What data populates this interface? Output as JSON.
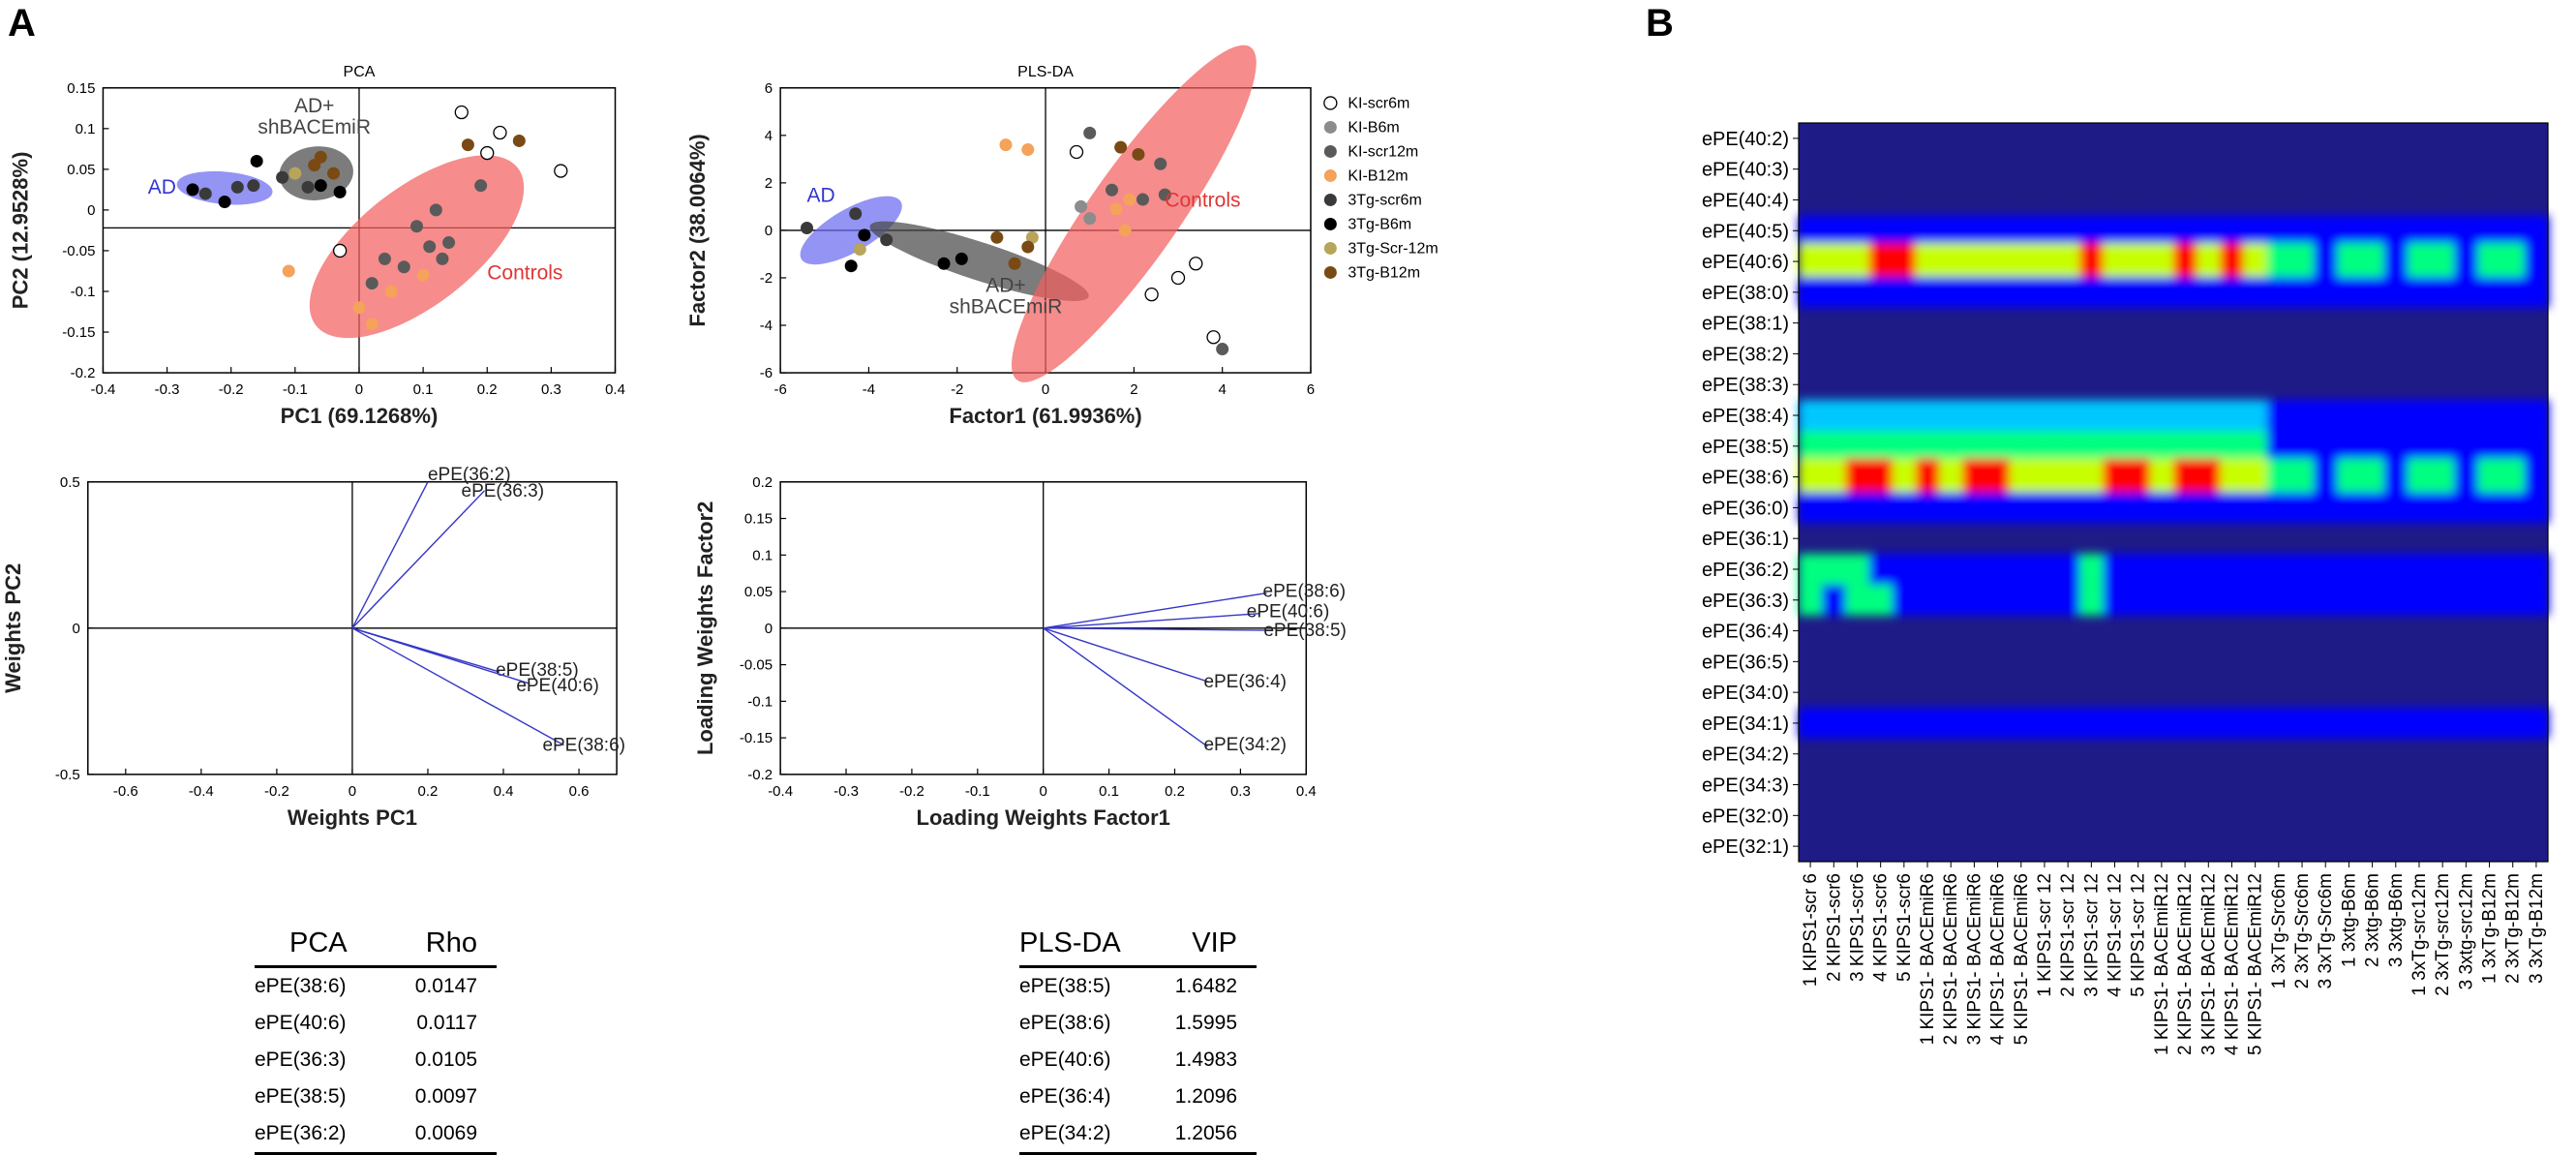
{
  "panel_labels": {
    "a": "A",
    "b": "B"
  },
  "chart_data": [
    {
      "id": "pca-scores",
      "type": "scatter",
      "title": "PCA",
      "xlabel": "PC1 (69.1268%)",
      "ylabel": "PC2 (12.9528%)",
      "xlim": [
        -0.4,
        0.4
      ],
      "ylim": [
        -0.2,
        0.15
      ],
      "xticks": [
        "-0.4",
        "-0.3",
        "-0.2",
        "-0.1",
        "0",
        "0.1",
        "0.2",
        "0.3",
        "0.4"
      ],
      "yticks": [
        "-0.2",
        "-0.15",
        "-0.1",
        "-0.05",
        "0",
        "0.05",
        "0.1",
        "0.15"
      ],
      "crosshair": [
        0,
        -0.022
      ],
      "ellipses": [
        {
          "label": "AD",
          "color": "#6b6bf0",
          "label_color": "#3434d0",
          "cx": -0.21,
          "cy": 0.027,
          "rx": 0.075,
          "ry": 0.02,
          "angle": 5
        },
        {
          "label": "AD+\nshBACEmiR",
          "color": "#4a4a4a",
          "label_color": "#444444",
          "cx": -0.067,
          "cy": 0.045,
          "rx": 0.058,
          "ry": 0.033,
          "angle": -6
        },
        {
          "label": "Controls",
          "color": "#f26060",
          "label_color": "#e03535",
          "cx": 0.09,
          "cy": -0.045,
          "rx": 0.2,
          "ry": 0.072,
          "angle": -38
        }
      ],
      "points": [
        {
          "g": "3Tg-B6m",
          "x": -0.26,
          "y": 0.025
        },
        {
          "g": "3Tg-scr6m",
          "x": -0.24,
          "y": 0.02
        },
        {
          "g": "3Tg-B6m",
          "x": -0.21,
          "y": 0.01
        },
        {
          "g": "3Tg-scr6m",
          "x": -0.19,
          "y": 0.028
        },
        {
          "g": "3Tg-scr6m",
          "x": -0.165,
          "y": 0.03
        },
        {
          "g": "3Tg-B6m",
          "x": -0.16,
          "y": 0.06
        },
        {
          "g": "3Tg-scr6m",
          "x": -0.12,
          "y": 0.04
        },
        {
          "g": "3Tg-Scr-12m",
          "x": -0.1,
          "y": 0.045
        },
        {
          "g": "3Tg-B12m",
          "x": -0.07,
          "y": 0.055
        },
        {
          "g": "3Tg-B6m",
          "x": -0.06,
          "y": 0.03
        },
        {
          "g": "3Tg-B12m",
          "x": -0.04,
          "y": 0.045
        },
        {
          "g": "3Tg-B12m",
          "x": -0.06,
          "y": 0.065
        },
        {
          "g": "3Tg-scr6m",
          "x": -0.08,
          "y": 0.028
        },
        {
          "g": "3Tg-B6m",
          "x": -0.03,
          "y": 0.022
        },
        {
          "g": "KI-B12m",
          "x": -0.11,
          "y": -0.075
        },
        {
          "g": "KI-scr6m",
          "x": -0.03,
          "y": -0.05
        },
        {
          "g": "KI-B12m",
          "x": 0.0,
          "y": -0.12
        },
        {
          "g": "KI-B12m",
          "x": 0.02,
          "y": -0.14
        },
        {
          "g": "KI-scr12m",
          "x": 0.02,
          "y": -0.09
        },
        {
          "g": "KI-B12m",
          "x": 0.05,
          "y": -0.1
        },
        {
          "g": "KI-scr12m",
          "x": 0.04,
          "y": -0.06
        },
        {
          "g": "KI-scr12m",
          "x": 0.07,
          "y": -0.07
        },
        {
          "g": "KI-scr12m",
          "x": 0.09,
          "y": -0.02
        },
        {
          "g": "KI-scr12m",
          "x": 0.11,
          "y": -0.045
        },
        {
          "g": "KI-scr12m",
          "x": 0.13,
          "y": -0.06
        },
        {
          "g": "KI-scr12m",
          "x": 0.14,
          "y": -0.04
        },
        {
          "g": "KI-B12m",
          "x": 0.1,
          "y": -0.08
        },
        {
          "g": "KI-scr12m",
          "x": 0.12,
          "y": 0.0
        },
        {
          "g": "3Tg-B12m",
          "x": 0.17,
          "y": 0.08
        },
        {
          "g": "KI-scr6m",
          "x": 0.16,
          "y": 0.12
        },
        {
          "g": "KI-scr6m",
          "x": 0.2,
          "y": 0.07
        },
        {
          "g": "KI-scr6m",
          "x": 0.22,
          "y": 0.095
        },
        {
          "g": "3Tg-B12m",
          "x": 0.25,
          "y": 0.085
        },
        {
          "g": "KI-scr12m",
          "x": 0.19,
          "y": 0.03
        },
        {
          "g": "KI-scr6m",
          "x": 0.315,
          "y": 0.048
        }
      ]
    },
    {
      "id": "plsda-scores",
      "type": "scatter",
      "title": "PLS-DA",
      "xlabel": "Factor1 (61.9936%)",
      "ylabel": "Factor2 (38.0064%)",
      "xlim": [
        -6,
        6
      ],
      "ylim": [
        -6,
        6
      ],
      "xticks": [
        "-6",
        "-4",
        "-2",
        "0",
        "2",
        "4",
        "6"
      ],
      "yticks": [
        "-6",
        "-4",
        "-2",
        "0",
        "2",
        "4",
        "6"
      ],
      "crosshair": [
        0,
        0
      ],
      "ellipses": [
        {
          "label": "AD",
          "color": "#6b6bf0",
          "label_color": "#3434d0",
          "cx": -4.4,
          "cy": 0.0,
          "rx": 1.3,
          "ry": 0.9,
          "angle": -30
        },
        {
          "label": "AD+\nshBACEmiR",
          "color": "#4a4a4a",
          "label_color": "#444444",
          "cx": -1.5,
          "cy": -1.3,
          "rx": 2.6,
          "ry": 0.8,
          "angle": 18
        },
        {
          "label": "Controls",
          "color": "#f26060",
          "label_color": "#e03535",
          "cx": 2.0,
          "cy": 0.7,
          "rx": 4.6,
          "ry": 1.9,
          "angle": -55
        }
      ],
      "points": [
        {
          "g": "3Tg-scr6m",
          "x": -5.4,
          "y": 0.1
        },
        {
          "g": "3Tg-scr6m",
          "x": -4.3,
          "y": 0.7
        },
        {
          "g": "3Tg-B6m",
          "x": -4.1,
          "y": -0.2
        },
        {
          "g": "3Tg-Scr-12m",
          "x": -4.2,
          "y": -0.8
        },
        {
          "g": "3Tg-B6m",
          "x": -4.4,
          "y": -1.5
        },
        {
          "g": "3Tg-scr6m",
          "x": -3.6,
          "y": -0.4
        },
        {
          "g": "3Tg-B6m",
          "x": -2.3,
          "y": -1.4
        },
        {
          "g": "3Tg-B6m",
          "x": -1.9,
          "y": -1.2
        },
        {
          "g": "3Tg-B12m",
          "x": -1.1,
          "y": -0.3
        },
        {
          "g": "3Tg-B12m",
          "x": -0.7,
          "y": -1.4
        },
        {
          "g": "3Tg-Scr-12m",
          "x": -0.3,
          "y": -0.3
        },
        {
          "g": "3Tg-B12m",
          "x": -0.4,
          "y": -0.7
        },
        {
          "g": "KI-B12m",
          "x": -0.9,
          "y": 3.6
        },
        {
          "g": "KI-B12m",
          "x": -0.4,
          "y": 3.4
        },
        {
          "g": "KI-scr6m",
          "x": 0.7,
          "y": 3.3
        },
        {
          "g": "KI-scr12m",
          "x": 1.0,
          "y": 4.1
        },
        {
          "g": "3Tg-B12m",
          "x": 1.7,
          "y": 3.5
        },
        {
          "g": "KI-scr12m",
          "x": 2.6,
          "y": 2.8
        },
        {
          "g": "3Tg-B12m",
          "x": 2.1,
          "y": 3.2
        },
        {
          "g": "KI-B6m",
          "x": 0.8,
          "y": 1.0
        },
        {
          "g": "KI-B12m",
          "x": 1.6,
          "y": 0.9
        },
        {
          "g": "KI-B12m",
          "x": 1.9,
          "y": 1.3
        },
        {
          "g": "KI-scr12m",
          "x": 1.5,
          "y": 1.7
        },
        {
          "g": "KI-scr12m",
          "x": 2.2,
          "y": 1.3
        },
        {
          "g": "KI-scr12m",
          "x": 2.7,
          "y": 1.5
        },
        {
          "g": "KI-B6m",
          "x": 1.0,
          "y": 0.5
        },
        {
          "g": "KI-B12m",
          "x": 1.8,
          "y": 0.0
        },
        {
          "g": "KI-scr6m",
          "x": 3.0,
          "y": -2.0
        },
        {
          "g": "KI-scr6m",
          "x": 3.4,
          "y": -1.4
        },
        {
          "g": "KI-scr6m",
          "x": 2.4,
          "y": -2.7
        },
        {
          "g": "KI-scr6m",
          "x": 3.8,
          "y": -4.5
        },
        {
          "g": "KI-scr12m",
          "x": 4.0,
          "y": -5.0
        }
      ],
      "legend": {
        "position": "right",
        "entries": [
          {
            "label": "KI-scr6m",
            "color": "#ffffff"
          },
          {
            "label": "KI-B6m",
            "color": "#8c8c8c"
          },
          {
            "label": "KI-scr12m",
            "color": "#5a5a5a"
          },
          {
            "label": "KI-B12m",
            "color": "#f5a25a"
          },
          {
            "label": "3Tg-scr6m",
            "color": "#3a3a3a"
          },
          {
            "label": "3Tg-B6m",
            "color": "#000000"
          },
          {
            "label": "3Tg-Scr-12m",
            "color": "#b8a45a"
          },
          {
            "label": "3Tg-B12m",
            "color": "#7a4a14"
          }
        ]
      }
    },
    {
      "id": "pca-weights",
      "type": "line",
      "title": "",
      "xlabel": "Weights PC1",
      "ylabel": "Weights PC2",
      "xlim": [
        -0.7,
        0.7
      ],
      "ylim": [
        -0.5,
        0.5
      ],
      "xticks": [
        "-0.6",
        "-0.4",
        "-0.2",
        "0",
        "0.2",
        "0.4",
        "0.6"
      ],
      "yticks": [
        "-0.5",
        "0",
        "0.5"
      ],
      "vectors": [
        {
          "label": "ePE(36:2)",
          "x": 0.2,
          "y": 0.5
        },
        {
          "label": "ePE(36:3)",
          "x": 0.35,
          "y": 0.47
        },
        {
          "label": "ePE(38:5)",
          "x": 0.39,
          "y": -0.15
        },
        {
          "label": "ePE(40:6)",
          "x": 0.47,
          "y": -0.19
        },
        {
          "label": "ePE(38:6)",
          "x": 0.56,
          "y": -0.4
        }
      ]
    },
    {
      "id": "plsda-loadings",
      "type": "line",
      "title": "",
      "xlabel": "Loading Weights Factor1",
      "ylabel": "Loading Weights Factor2",
      "xlim": [
        -0.4,
        0.4
      ],
      "ylim": [
        -0.2,
        0.2
      ],
      "xticks": [
        "-0.4",
        "-0.3",
        "-0.2",
        "-0.1",
        "0",
        "0.1",
        "0.2",
        "0.3",
        "0.4"
      ],
      "yticks": [
        "-0.2",
        "-0.15",
        "-0.1",
        "-0.05",
        "0",
        "0.05",
        "0.1",
        "0.15",
        "0.2"
      ],
      "vectors": [
        {
          "label": "ePE(38:6)",
          "x": 0.34,
          "y": 0.048
        },
        {
          "label": "ePE(40:6)",
          "x": 0.33,
          "y": 0.02
        },
        {
          "label": "ePE(38:5)",
          "x": 0.35,
          "y": -0.003
        },
        {
          "label": "ePE(36:4)",
          "x": 0.25,
          "y": -0.073
        },
        {
          "label": "ePE(34:2)",
          "x": 0.25,
          "y": -0.162
        }
      ]
    },
    {
      "id": "heatmap",
      "type": "heatmap",
      "rows": [
        "ePE(40:2)",
        "ePE(40:3)",
        "ePE(40:4)",
        "ePE(40:5)",
        "ePE(40:6)",
        "ePE(38:0)",
        "ePE(38:1)",
        "ePE(38:2)",
        "ePE(38:3)",
        "ePE(38:4)",
        "ePE(38:5)",
        "ePE(38:6)",
        "ePE(36:0)",
        "ePE(36:1)",
        "ePE(36:2)",
        "ePE(36:3)",
        "ePE(36:4)",
        "ePE(36:5)",
        "ePE(34:0)",
        "ePE(34:1)",
        "ePE(34:2)",
        "ePE(34:3)",
        "ePE(32:0)",
        "ePE(32:1)"
      ],
      "columns": [
        "1 KIPS1-scr 6",
        "2 KIPS1-scr6",
        "3 KIPS1-scr6",
        "4 KIPS1-scr6",
        "5 KIPS1-scr6",
        "1 KIPS1- BACEmiR6",
        "2 KIPS1- BACEmiR6",
        "3 KIPS1- BACEmiR6",
        "4 KIPS1- BACEmiR6",
        "5 KIPS1- BACEmiR6",
        "1 KIPS1-scr 12",
        "2 KIPS1-scr 12",
        "3 KIPS1-scr 12",
        "4 KIPS1-scr 12",
        "5 KIPS1-scr 12",
        "1 KIPS1- BACEmiR12",
        "2 KIPS1- BACEmiR12",
        "3 KIPS1- BACEmiR12",
        "4 KIPS1- BACEmiR12",
        "5 KIPS1- BACEmiR12",
        "1 3xTg-Src6m",
        "2 3xTg-Src6m",
        "3 3xTg-Src6m",
        "1 3xtg-B6m",
        "2 3xtg-B6m",
        "3 3xtg-B6m",
        "1 3xTg-src12m",
        "2 3xTg-src12m",
        "3 3xtg-src12m",
        "1 3xTg-B12m",
        "2 3xTg-B12m",
        "3 3xTg-B12m"
      ],
      "colormap": [
        "#1a1a8c",
        "#0000ff",
        "#00c8ff",
        "#00ff80",
        "#c8ff00",
        "#ff8000",
        "#ff0000"
      ]
    }
  ],
  "tables": {
    "pca": {
      "headers": [
        "PCA",
        "Rho"
      ],
      "rows": [
        [
          "ePE(38:6)",
          "0.0147"
        ],
        [
          "ePE(40:6)",
          "0.0117"
        ],
        [
          "ePE(36:3)",
          "0.0105"
        ],
        [
          "ePE(38:5)",
          "0.0097"
        ],
        [
          "ePE(36:2)",
          "0.0069"
        ]
      ]
    },
    "plsda": {
      "headers": [
        "PLS-DA",
        "VIP"
      ],
      "rows": [
        [
          "ePE(38:5)",
          "1.6482"
        ],
        [
          "ePE(38:6)",
          "1.5995"
        ],
        [
          "ePE(40:6)",
          "1.4983"
        ],
        [
          "ePE(36:4)",
          "1.2096"
        ],
        [
          "ePE(34:2)",
          "1.2056"
        ]
      ]
    }
  }
}
